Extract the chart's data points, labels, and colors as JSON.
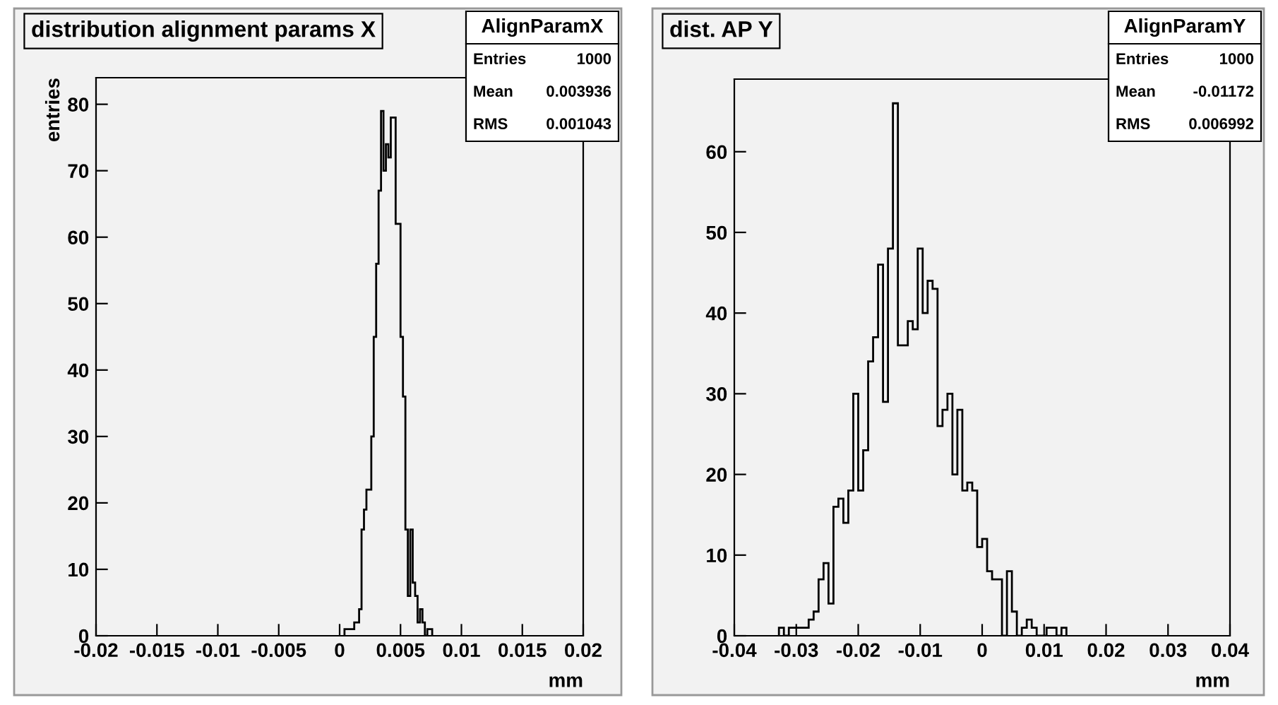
{
  "chart_data": [
    {
      "type": "histogram",
      "title": "distribution alignment params X",
      "xlabel": "mm",
      "ylabel": "entries",
      "bins": [
        0.0004,
        0.0006,
        0.0008,
        0.001,
        0.0012,
        0.0014,
        0.0016,
        0.0018,
        0.002,
        0.0022,
        0.0024,
        0.0026,
        0.0028,
        0.003,
        0.0032,
        0.0034,
        0.0036,
        0.0038,
        0.004,
        0.0042,
        0.0044,
        0.0046,
        0.0048,
        0.005,
        0.0052,
        0.0054,
        0.0056,
        0.0058,
        0.006,
        0.0062,
        0.0064,
        0.0066,
        0.0068,
        0.007,
        0.0072,
        0.0074,
        0.0076
      ],
      "values": [
        1,
        1,
        1,
        1,
        2,
        2,
        4,
        16,
        19,
        22,
        22,
        30,
        45,
        56,
        67,
        79,
        70,
        74,
        72,
        78,
        78,
        62,
        62,
        45,
        36,
        16,
        6,
        16,
        8,
        6,
        2,
        4,
        2,
        0,
        1,
        1
      ],
      "color": "#000000",
      "xlim": [
        -0.02,
        0.02
      ],
      "xticks": [
        -0.02,
        -0.015,
        -0.01,
        -0.005,
        0,
        0.005,
        0.01,
        0.015,
        0.02
      ],
      "ylim": [
        0,
        84
      ],
      "yticks": [
        0,
        10,
        20,
        30,
        40,
        50,
        60,
        70,
        80
      ],
      "annotations": [
        "AlignParamX",
        "Entries 1000",
        "Mean 0.003936",
        "RMS 0.001043"
      ]
    },
    {
      "type": "histogram",
      "title": "dist. AP Y",
      "xlabel": "mm",
      "bins": [
        -0.0328,
        -0.032,
        -0.0312,
        -0.0304,
        -0.0296,
        -0.0288,
        -0.028,
        -0.0272,
        -0.0264,
        -0.0256,
        -0.0248,
        -0.024,
        -0.0232,
        -0.0224,
        -0.0216,
        -0.0208,
        -0.02,
        -0.0192,
        -0.0184,
        -0.0176,
        -0.0168,
        -0.016,
        -0.0152,
        -0.0144,
        -0.0136,
        -0.0128,
        -0.012,
        -0.0112,
        -0.0104,
        -0.0096,
        -0.0088,
        -0.008,
        -0.0072,
        -0.0064,
        -0.0056,
        -0.0048,
        -0.004,
        -0.0032,
        -0.0024,
        -0.0016,
        -0.0008,
        0,
        0.0008,
        0.0016,
        0.0024,
        0.0032,
        0.004,
        0.0048,
        0.0056,
        0.0064,
        0.0072,
        0.008,
        0.0088,
        0.0096,
        0.0104,
        0.0112,
        0.012,
        0.0128,
        0.0136
      ],
      "values": [
        1,
        0,
        1,
        1,
        1,
        1,
        2,
        3,
        7,
        9,
        4,
        16,
        17,
        14,
        18,
        30,
        18,
        23,
        34,
        37,
        46,
        29,
        48,
        66,
        36,
        36,
        39,
        38,
        48,
        40,
        44,
        43,
        26,
        28,
        30,
        20,
        28,
        18,
        19,
        18,
        11,
        12,
        8,
        7,
        7,
        0,
        8,
        3,
        0,
        1,
        2,
        1,
        0,
        0,
        1,
        1,
        0,
        1
      ],
      "color": "#000000",
      "xlim": [
        -0.04,
        0.04
      ],
      "xticks": [
        -0.04,
        -0.03,
        -0.02,
        -0.01,
        0,
        0.01,
        0.02,
        0.03,
        0.04
      ],
      "ylim": [
        0,
        69
      ],
      "yticks": [
        0,
        10,
        20,
        30,
        40,
        50,
        60
      ],
      "annotations": [
        "AlignParamY",
        "Entries 1000",
        "Mean -0.01172",
        "RMS 0.006992"
      ]
    }
  ]
}
